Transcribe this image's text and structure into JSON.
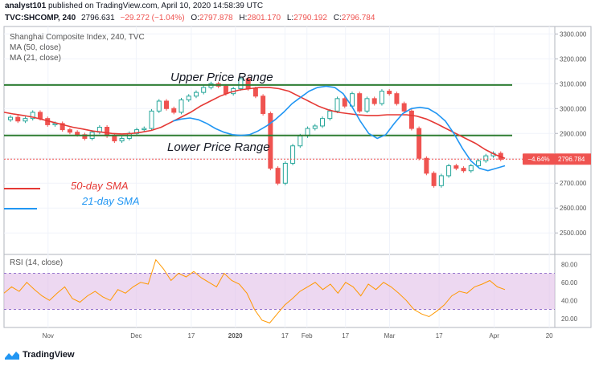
{
  "header": {
    "author": "analyst101",
    "published_text": "published on TradingView.com, April 10, 2020 14:58:39 UTC",
    "symbol": "TVC:SHCOMP, 240",
    "last": "2796.631",
    "change": "−29.272 (−1.04%)",
    "open_label": "O:",
    "open": "2797.878",
    "high_label": "H:",
    "high": "2801.170",
    "low_label": "L:",
    "low": "2790.192",
    "close_label": "C:",
    "close": "2796.784"
  },
  "legend": {
    "title": "Shanghai Composite Index, 240, TVC",
    "ma50": "MA (50, close)",
    "ma21": "MA (21, close)",
    "rsi": "RSI (14, close)"
  },
  "annotations": {
    "upper": "Upper Price Range",
    "lower": "Lower Price Range",
    "sma50": "50-day SMA",
    "sma21": "21-day SMA"
  },
  "price_badge": {
    "pct": "−4.64%",
    "price": "2796.784"
  },
  "footer": {
    "brand": "TradingView"
  },
  "colors": {
    "up": "#26a69a",
    "down": "#ef5350",
    "ma50": "#e53935",
    "ma21": "#2196f3",
    "line": "#2e7d32",
    "rsi": "#ff9800",
    "rsiband": "#e1bee7"
  },
  "chart_data": [
    {
      "type": "candlestick",
      "title": "Shanghai Composite Index, 240, TVC",
      "y_ticks": [
        3300,
        3200,
        3100,
        3000,
        2900,
        2800,
        2700,
        2600,
        2500
      ],
      "y_tick_labels": [
        "3300.000",
        "3200.000",
        "3100.000",
        "3000.000",
        "2900.000",
        "2800.000",
        "2700.000",
        "2600.000",
        "2500.000"
      ],
      "ylim": [
        2420,
        3330
      ],
      "x_tick_labels": [
        "Nov",
        "Dec",
        "17",
        "2020",
        "17",
        "Feb",
        "17",
        "Mar",
        "17",
        "Apr",
        "20"
      ],
      "x_tick_pos": [
        0.08,
        0.24,
        0.34,
        0.42,
        0.51,
        0.55,
        0.62,
        0.7,
        0.79,
        0.89,
        0.99
      ],
      "horizontal_levels": [
        3095,
        2892,
        2796.784
      ],
      "close_path": [
        2965,
        2950,
        2960,
        2985,
        2960,
        2935,
        2940,
        2915,
        2905,
        2895,
        2880,
        2905,
        2925,
        2890,
        2870,
        2880,
        2900,
        2915,
        2920,
        2990,
        3030,
        3000,
        2985,
        3035,
        3050,
        3065,
        3085,
        3100,
        3090,
        3060,
        3080,
        3120,
        3080,
        3050,
        2980,
        2760,
        2700,
        2780,
        2850,
        2890,
        2920,
        2930,
        2960,
        2990,
        3040,
        3010,
        3060,
        2990,
        3040,
        3020,
        3070,
        3060,
        3020,
        2990,
        2920,
        2800,
        2740,
        2690,
        2730,
        2770,
        2760,
        2750,
        2770,
        2790,
        2810,
        2820,
        2796
      ],
      "ma50_path": [
        2985,
        2978,
        2972,
        2965,
        2955,
        2945,
        2935,
        2925,
        2918,
        2910,
        2905,
        2900,
        2898,
        2900,
        2905,
        2912,
        2925,
        2945,
        2965,
        2985,
        3010,
        3030,
        3050,
        3065,
        3075,
        3080,
        3085,
        3085,
        3080,
        3070,
        3050,
        3030,
        3010,
        2995,
        2985,
        2980,
        2975,
        2972,
        2972,
        2975,
        2975,
        2975,
        2970,
        2958,
        2940,
        2920,
        2900,
        2880,
        2860,
        2835,
        2815,
        2800
      ],
      "ma21_path": [
        2950,
        2958,
        2962,
        2955,
        2940,
        2920,
        2905,
        2895,
        2892,
        2895,
        2910,
        2930,
        2955,
        2985,
        3020,
        3045,
        3070,
        3085,
        3090,
        3085,
        3060,
        3010,
        2950,
        2900,
        2880,
        2895,
        2940,
        2980,
        3000,
        3005,
        3000,
        2980,
        2950,
        2900,
        2840,
        2790,
        2760,
        2750,
        2760,
        2770
      ],
      "rsi_ticks": [
        80,
        60,
        40,
        20
      ],
      "rsi_tick_labels": [
        "80.00",
        "60.00",
        "40.00",
        "20.00"
      ],
      "rsi_band": [
        30,
        70
      ],
      "rsi_path": [
        48,
        55,
        50,
        60,
        52,
        45,
        40,
        48,
        55,
        42,
        38,
        45,
        50,
        44,
        40,
        52,
        48,
        55,
        60,
        58,
        85,
        75,
        62,
        70,
        66,
        72,
        65,
        60,
        55,
        70,
        62,
        58,
        48,
        30,
        18,
        15,
        25,
        35,
        42,
        50,
        55,
        60,
        52,
        58,
        48,
        60,
        55,
        45,
        58,
        52,
        60,
        55,
        48,
        40,
        30,
        25,
        22,
        28,
        35,
        45,
        50,
        48,
        55,
        58,
        62,
        55,
        52
      ]
    }
  ]
}
